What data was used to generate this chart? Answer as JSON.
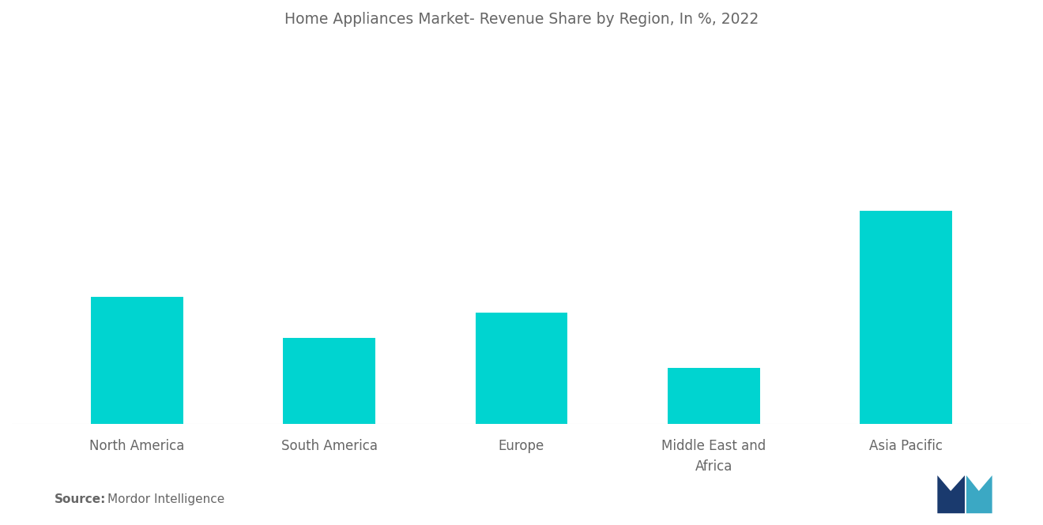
{
  "title": "Home Appliances Market- Revenue Share by Region, In %, 2022",
  "categories": [
    "North America",
    "South America",
    "Europe",
    "Middle East and\nAfrica",
    "Asia Pacific"
  ],
  "values": [
    25,
    17,
    22,
    11,
    42
  ],
  "bar_color": "#00D4D0",
  "background_color": "#ffffff",
  "title_color": "#666666",
  "label_color": "#666666",
  "title_fontsize": 13.5,
  "label_fontsize": 12,
  "source_label_bold": "Source:",
  "source_label_normal": "  Mordor Intelligence",
  "source_fontsize": 11,
  "ylim": [
    0,
    75
  ],
  "bar_width": 0.48,
  "logo_dark": "#1a3a6e",
  "logo_teal": "#3ba8c4"
}
